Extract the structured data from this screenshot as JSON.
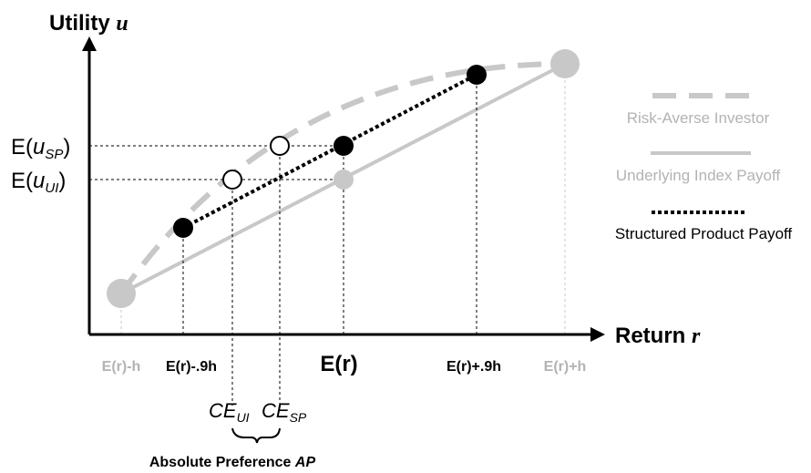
{
  "axes": {
    "y_title": "Utility",
    "y_symbol": "u",
    "x_title": "Return",
    "x_symbol": "r"
  },
  "y_ticks": {
    "e_usp": {
      "prefix": "E(",
      "var": "u",
      "sub": "SP",
      "suffix": ")"
    },
    "e_uui": {
      "prefix": "E(",
      "var": "u",
      "sub": "UI",
      "suffix": ")"
    }
  },
  "x_ticks": {
    "er_minus_h": "E(r)-h",
    "er_minus_09h": "E(r)-.9h",
    "er": "E(r)",
    "er_plus_09h": "E(r)+.9h",
    "er_plus_h": "E(r)+h"
  },
  "ce_labels": {
    "ce_ui": {
      "main": "CE",
      "sub": "UI"
    },
    "ce_sp": {
      "main": "CE",
      "sub": "SP"
    }
  },
  "brace": {
    "text": "Absolute Preference ",
    "emph": "AP"
  },
  "legend": {
    "risk_averse": "Risk-Averse Investor",
    "underlying": "Underlying Index Payoff",
    "structured": "Structured Product Payoff"
  },
  "colors": {
    "gray": "#c8c8c8",
    "gray_text": "#b3b3b3",
    "black": "#000000"
  }
}
